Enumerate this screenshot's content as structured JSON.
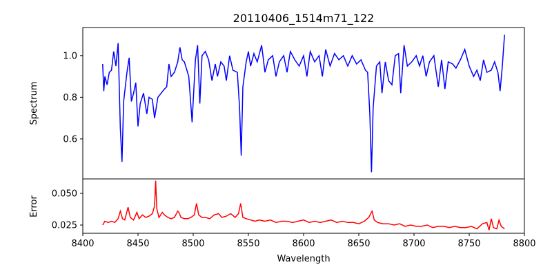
{
  "chart_data": [
    {
      "type": "line",
      "title": "20110406_1514m71_122",
      "xlabel": "",
      "ylabel": "Spectrum",
      "xlim": [
        8400,
        8800
      ],
      "ylim": [
        0.408,
        1.135
      ],
      "yticks": [
        0.6,
        0.8,
        1.0
      ],
      "ytick_labels": [
        "0.6",
        "0.8",
        "1.0"
      ],
      "color": "#0000ff",
      "x": [
        8418,
        8419,
        8420,
        8422,
        8424,
        8426,
        8428,
        8430,
        8432,
        8434,
        8435.5,
        8437,
        8440,
        8442,
        8444,
        8446,
        8448,
        8450,
        8452,
        8455,
        8458,
        8460,
        8463,
        8465,
        8468,
        8471,
        8474,
        8476,
        8478,
        8480,
        8483,
        8486,
        8488,
        8490,
        8492,
        8496,
        8499,
        8502,
        8504,
        8506,
        8508,
        8511,
        8514,
        8517,
        8520,
        8522,
        8525,
        8528,
        8530,
        8533,
        8536,
        8540,
        8542,
        8543.5,
        8545,
        8548,
        8550,
        8552,
        8555,
        8558,
        8562,
        8565,
        8568,
        8572,
        8575,
        8578,
        8582,
        8585,
        8588,
        8592,
        8596,
        8600,
        8603,
        8606,
        8610,
        8614,
        8617,
        8620,
        8624,
        8628,
        8632,
        8636,
        8640,
        8644,
        8648,
        8652,
        8656,
        8658,
        8660,
        8661.5,
        8663,
        8666,
        8669,
        8671,
        8674,
        8677,
        8680,
        8683,
        8686,
        8688,
        8691,
        8694,
        8698,
        8702,
        8705,
        8708,
        8711,
        8714,
        8718,
        8722,
        8725,
        8728,
        8731,
        8735,
        8738,
        8742,
        8746,
        8750,
        8754,
        8757,
        8760,
        8763,
        8766,
        8770,
        8773,
        8776,
        8778,
        8780,
        8782
      ],
      "y": [
        0.96,
        0.83,
        0.9,
        0.86,
        0.92,
        0.93,
        1.02,
        0.95,
        1.06,
        0.65,
        0.49,
        0.78,
        0.92,
        0.99,
        0.78,
        0.82,
        0.87,
        0.66,
        0.77,
        0.82,
        0.72,
        0.8,
        0.79,
        0.7,
        0.8,
        0.82,
        0.84,
        0.85,
        0.96,
        0.9,
        0.92,
        0.97,
        1.04,
        0.98,
        0.97,
        0.9,
        0.68,
        0.98,
        1.05,
        0.77,
        1.0,
        1.02,
        0.98,
        0.88,
        0.96,
        0.9,
        0.97,
        0.95,
        0.88,
        1.0,
        0.93,
        0.92,
        0.75,
        0.52,
        0.85,
        0.97,
        1.02,
        0.95,
        1.01,
        0.97,
        1.05,
        0.92,
        0.98,
        1.0,
        0.9,
        0.97,
        1.0,
        0.92,
        1.02,
        0.98,
        0.95,
        1.0,
        0.9,
        1.02,
        0.97,
        1.0,
        0.9,
        1.03,
        0.95,
        1.01,
        0.98,
        1.0,
        0.95,
        1.0,
        0.96,
        0.98,
        0.93,
        0.92,
        0.72,
        0.44,
        0.75,
        0.95,
        0.97,
        0.82,
        0.97,
        0.88,
        0.86,
        1.0,
        1.01,
        0.82,
        1.05,
        0.95,
        0.97,
        1.0,
        0.95,
        1.0,
        0.9,
        0.97,
        1.0,
        0.85,
        0.98,
        0.84,
        0.97,
        0.96,
        0.94,
        0.98,
        1.03,
        0.95,
        0.9,
        0.93,
        0.88,
        0.98,
        0.92,
        0.93,
        0.97,
        0.92,
        0.83,
        0.95,
        1.1
      ]
    },
    {
      "type": "line",
      "title": "",
      "xlabel": "Wavelength",
      "ylabel": "Error",
      "xlim": [
        8400,
        8800
      ],
      "ylim": [
        0.0185,
        0.0614
      ],
      "xticks": [
        8400,
        8450,
        8500,
        8550,
        8600,
        8650,
        8700,
        8750,
        8800
      ],
      "xtick_labels": [
        "8400",
        "8450",
        "8500",
        "8550",
        "8600",
        "8650",
        "8700",
        "8750",
        "8800"
      ],
      "yticks": [
        0.025,
        0.05
      ],
      "ytick_labels": [
        "0.025",
        "0.050"
      ],
      "color": "#ff0000",
      "x": [
        8418,
        8420,
        8423,
        8426,
        8429,
        8432,
        8434,
        8436,
        8438,
        8441,
        8443,
        8446,
        8449,
        8451,
        8454,
        8457,
        8460,
        8463,
        8465,
        8466,
        8467,
        8469,
        8472,
        8474,
        8477,
        8480,
        8483,
        8486,
        8487,
        8489,
        8492,
        8495,
        8498,
        8501,
        8503,
        8505,
        8508,
        8511,
        8515,
        8519,
        8523,
        8526,
        8530,
        8534,
        8538,
        8541,
        8543,
        8545,
        8548,
        8552,
        8556,
        8560,
        8565,
        8570,
        8575,
        8580,
        8585,
        8590,
        8595,
        8600,
        8605,
        8610,
        8615,
        8620,
        8625,
        8630,
        8635,
        8640,
        8645,
        8650,
        8655,
        8659,
        8662,
        8664,
        8667,
        8672,
        8677,
        8682,
        8687,
        8692,
        8697,
        8702,
        8707,
        8712,
        8717,
        8722,
        8727,
        8732,
        8737,
        8742,
        8747,
        8752,
        8757,
        8762,
        8766,
        8768,
        8770,
        8772,
        8775,
        8777,
        8779,
        8782
      ],
      "y": [
        0.025,
        0.028,
        0.027,
        0.028,
        0.027,
        0.03,
        0.036,
        0.03,
        0.029,
        0.039,
        0.031,
        0.029,
        0.035,
        0.03,
        0.033,
        0.031,
        0.032,
        0.034,
        0.04,
        0.06,
        0.038,
        0.031,
        0.035,
        0.033,
        0.031,
        0.03,
        0.031,
        0.036,
        0.035,
        0.031,
        0.03,
        0.03,
        0.031,
        0.033,
        0.042,
        0.033,
        0.031,
        0.031,
        0.03,
        0.033,
        0.034,
        0.031,
        0.032,
        0.034,
        0.031,
        0.034,
        0.042,
        0.031,
        0.03,
        0.029,
        0.028,
        0.029,
        0.028,
        0.029,
        0.027,
        0.028,
        0.028,
        0.027,
        0.028,
        0.029,
        0.027,
        0.028,
        0.027,
        0.028,
        0.029,
        0.027,
        0.028,
        0.027,
        0.027,
        0.026,
        0.028,
        0.031,
        0.036,
        0.029,
        0.027,
        0.026,
        0.026,
        0.025,
        0.026,
        0.024,
        0.025,
        0.024,
        0.024,
        0.025,
        0.023,
        0.024,
        0.024,
        0.023,
        0.024,
        0.023,
        0.023,
        0.024,
        0.022,
        0.026,
        0.027,
        0.021,
        0.03,
        0.023,
        0.022,
        0.029,
        0.024,
        0.022
      ]
    }
  ]
}
